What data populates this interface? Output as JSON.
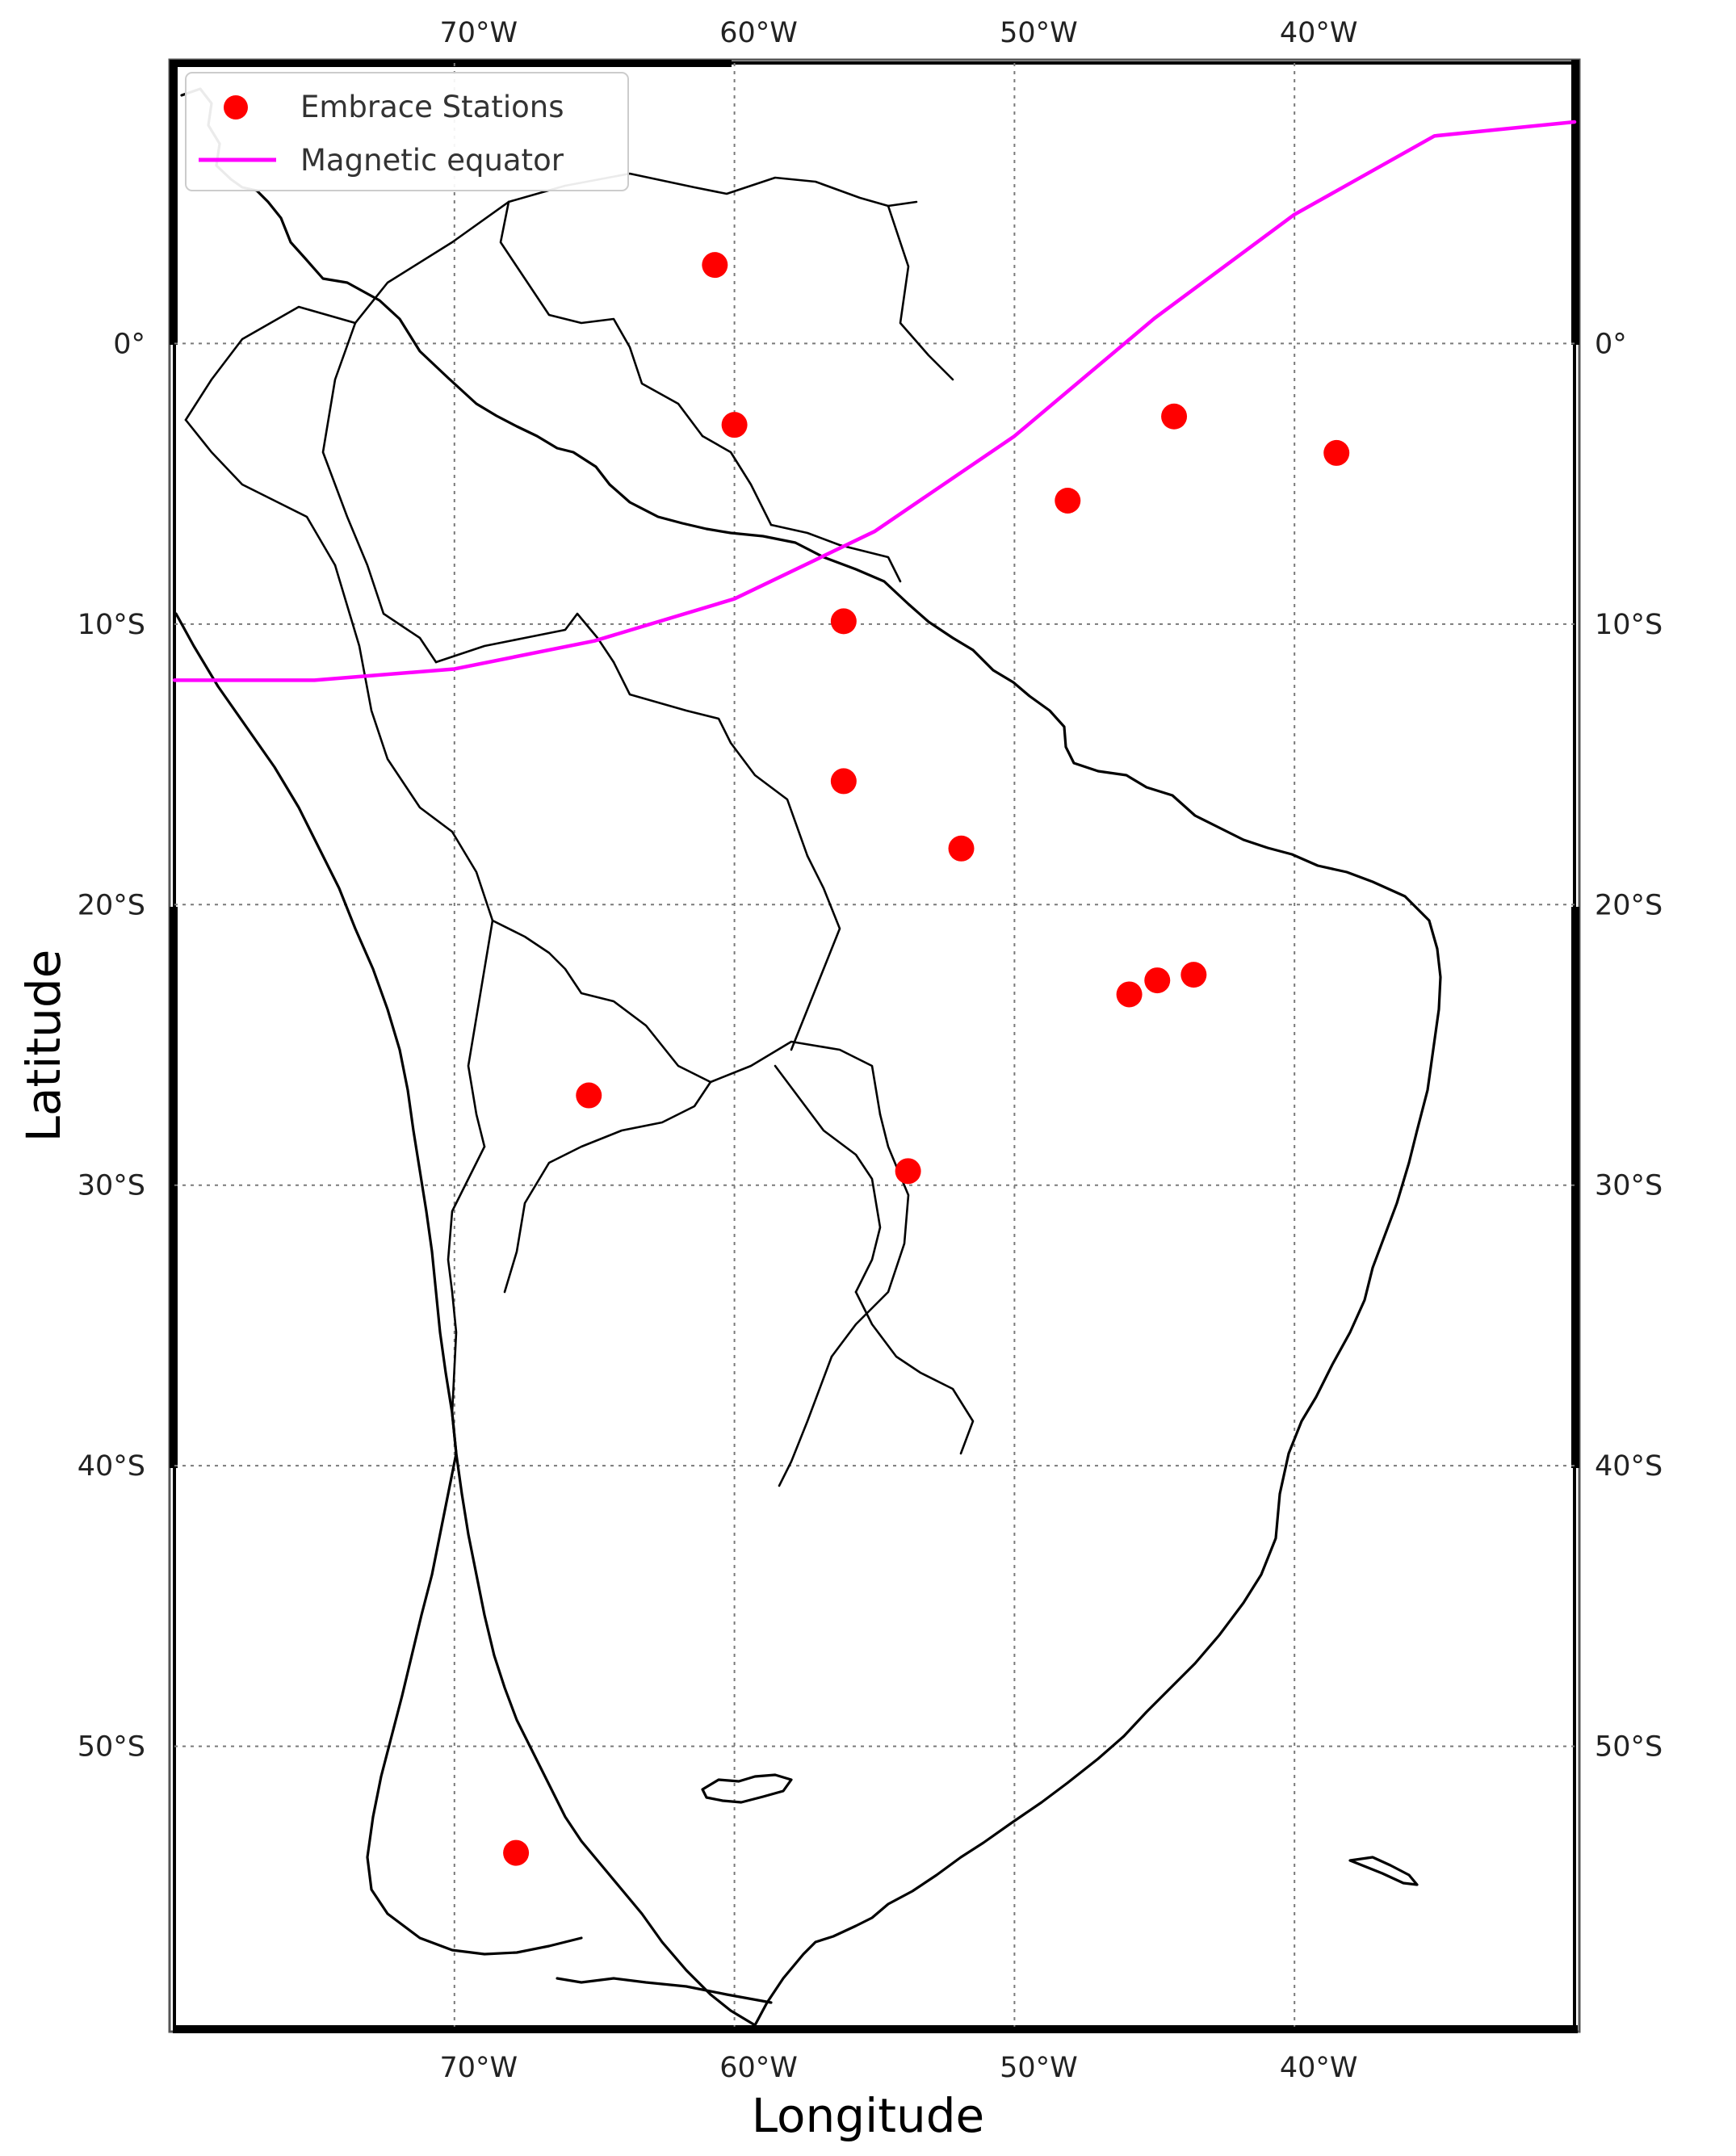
{
  "map": {
    "axes": {
      "xlabel": "Longitude",
      "ylabel": "Latitude",
      "lon_range": [
        -80,
        -30
      ],
      "lat_range": [
        -60,
        10
      ],
      "x_ticks": [
        {
          "lon": -70,
          "label": "70°W"
        },
        {
          "lon": -60,
          "label": "60°W"
        },
        {
          "lon": -50,
          "label": "50°W"
        },
        {
          "lon": -40,
          "label": "40°W"
        }
      ],
      "y_ticks": [
        {
          "lat": 0,
          "label": "0°"
        },
        {
          "lat": -10,
          "label": "10°S"
        },
        {
          "lat": -20,
          "label": "20°S"
        },
        {
          "lat": -30,
          "label": "30°S"
        },
        {
          "lat": -40,
          "label": "40°S"
        },
        {
          "lat": -50,
          "label": "50°S"
        }
      ],
      "grid": true
    },
    "legend": {
      "placement": "top-left",
      "entries": [
        {
          "label": "Embrace Stations",
          "marker": "circle",
          "color": "#ff0000"
        },
        {
          "label": "Magnetic equator",
          "marker": "line",
          "color": "#ff00ff"
        }
      ]
    },
    "stations": {
      "color": "#ff0000",
      "points": [
        {
          "lon": -60.7,
          "lat": 2.8
        },
        {
          "lon": -60.0,
          "lat": -2.9
        },
        {
          "lon": -44.3,
          "lat": -2.6
        },
        {
          "lon": -38.5,
          "lat": -3.9
        },
        {
          "lon": -48.1,
          "lat": -5.6
        },
        {
          "lon": -56.1,
          "lat": -9.9
        },
        {
          "lon": -56.1,
          "lat": -15.6
        },
        {
          "lon": -51.9,
          "lat": -18.0
        },
        {
          "lon": -45.9,
          "lat": -23.2
        },
        {
          "lon": -44.9,
          "lat": -22.7
        },
        {
          "lon": -43.6,
          "lat": -22.5
        },
        {
          "lon": -65.2,
          "lat": -26.8
        },
        {
          "lon": -53.8,
          "lat": -29.5
        },
        {
          "lon": -67.8,
          "lat": -53.8
        }
      ]
    },
    "magnetic_equator": {
      "color": "#ff00ff",
      "points": [
        [
          -80,
          -12.0
        ],
        [
          -75,
          -12.0
        ],
        [
          -70,
          -11.6
        ],
        [
          -65,
          -10.6
        ],
        [
          -60,
          -9.1
        ],
        [
          -55,
          -6.7
        ],
        [
          -50,
          -3.3
        ],
        [
          -45,
          0.9
        ],
        [
          -40,
          4.6
        ],
        [
          -35,
          7.4
        ],
        [
          -30,
          7.9
        ]
      ]
    }
  }
}
